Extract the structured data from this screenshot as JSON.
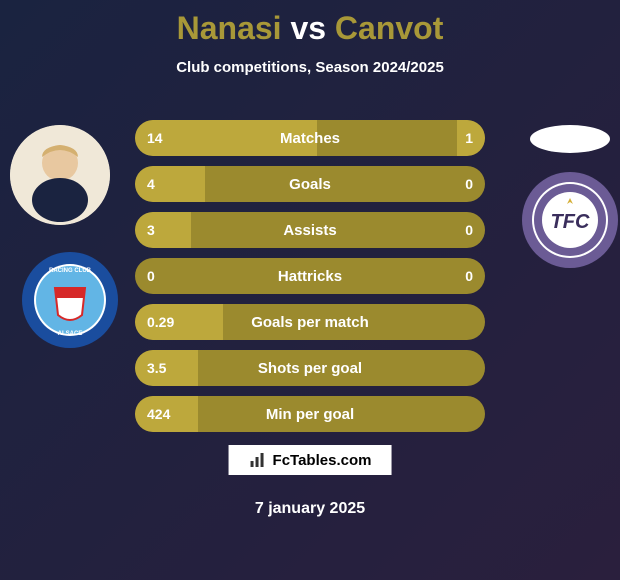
{
  "title": {
    "player1": "Nanasi",
    "vs": "vs",
    "player2": "Canvot",
    "p1_color": "#a89838",
    "vs_color": "#ffffff",
    "p2_color": "#a89838",
    "fontsize": 32
  },
  "subtitle": "Club competitions, Season 2024/2025",
  "background": {
    "gradient_from": "#1a2340",
    "gradient_to": "#2a1f3d"
  },
  "stats": {
    "bar_bg": "#9b8a2e",
    "bar_fill": "#bda83c",
    "text_color": "#ffffff",
    "rows": [
      {
        "label": "Matches",
        "left": "14",
        "right": "1",
        "left_pct": 52,
        "right_pct": 8
      },
      {
        "label": "Goals",
        "left": "4",
        "right": "0",
        "left_pct": 20,
        "right_pct": 0
      },
      {
        "label": "Assists",
        "left": "3",
        "right": "0",
        "left_pct": 16,
        "right_pct": 0
      },
      {
        "label": "Hattricks",
        "left": "0",
        "right": "0",
        "left_pct": 0,
        "right_pct": 0
      },
      {
        "label": "Goals per match",
        "left": "0.29",
        "right": "",
        "left_pct": 25,
        "right_pct": 0
      },
      {
        "label": "Shots per goal",
        "left": "3.5",
        "right": "",
        "left_pct": 18,
        "right_pct": 0
      },
      {
        "label": "Min per goal",
        "left": "424",
        "right": "",
        "left_pct": 18,
        "right_pct": 0
      }
    ]
  },
  "branding": "FcTables.com",
  "date": "7 january 2025",
  "club_left": {
    "name": "Racing Club Strasbourg Alsace",
    "ring_color": "#1a4d9e",
    "inner_bg": "#ffffff",
    "accent": "#d62828"
  },
  "club_right": {
    "name": "Toulouse FC",
    "ring_color": "#6b5b95",
    "inner_bg": "#ffffff",
    "text": "TFC"
  }
}
